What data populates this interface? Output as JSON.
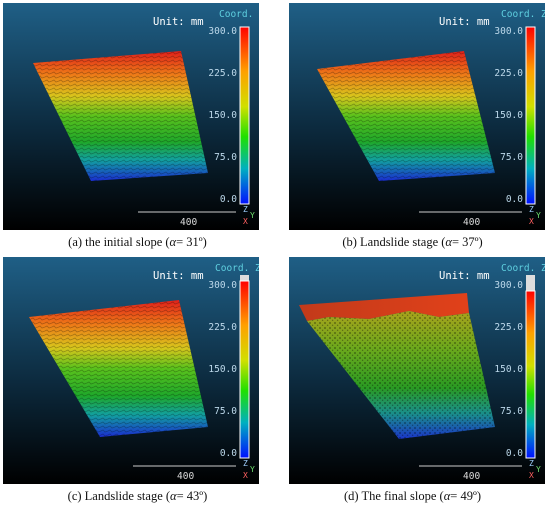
{
  "panels": [
    {
      "unit": "Unit: mm",
      "coord": "Coord. Z",
      "ticks": [
        "300.0",
        "225.0",
        "150.0",
        "75.0",
        "0.0"
      ],
      "scale": "400",
      "axis_z": "Z",
      "axis_y": "Y",
      "axis_x": "X",
      "caption_pre": "(a) the initial slope  (",
      "caption_alpha": "α",
      "caption_post": "= 31º)"
    },
    {
      "unit": "Unit: mm",
      "coord": "Coord. Z",
      "ticks": [
        "300.0",
        "225.0",
        "150.0",
        "75.0",
        "0.0"
      ],
      "scale": "400",
      "axis_z": "Z",
      "axis_y": "Y",
      "axis_x": "X",
      "caption_pre": "(b) Landslide stage (",
      "caption_alpha": "α",
      "caption_post": "= 37º)"
    },
    {
      "unit": "Unit: mm",
      "coord": "Coord. Z",
      "ticks": [
        "300.0",
        "225.0",
        "150.0",
        "75.0",
        "0.0"
      ],
      "scale": "400",
      "axis_z": "Z",
      "axis_y": "Y",
      "axis_x": "X",
      "caption_pre": "(c) Landslide stage (",
      "caption_alpha": "α",
      "caption_post": "= 43º)"
    },
    {
      "unit": "Unit: mm",
      "coord": "Coord. Z",
      "ticks": [
        "300.0",
        "225.0",
        "150.0",
        "75.0",
        "0.0"
      ],
      "scale": "400",
      "axis_z": "Z",
      "axis_y": "Y",
      "axis_x": "X",
      "caption_pre": "(d) The final slope (",
      "caption_alpha": "α",
      "caption_post": "= 49º)"
    }
  ]
}
